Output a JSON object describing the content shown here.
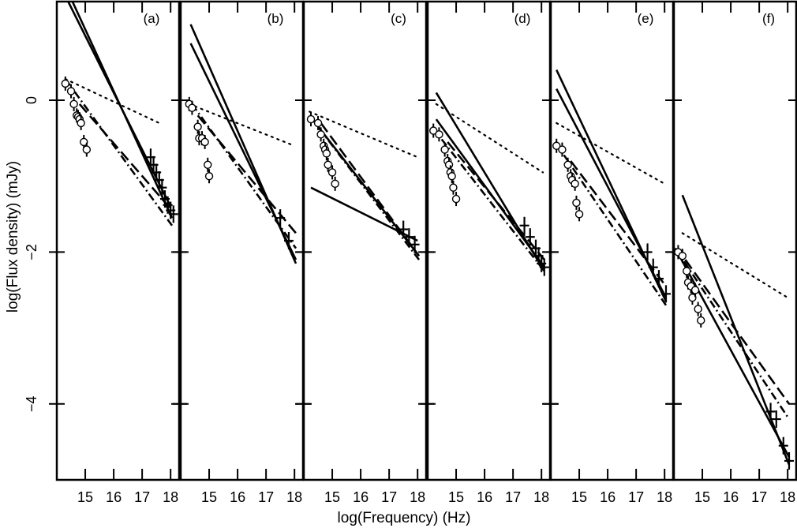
{
  "chart_data": {
    "type": "scatter",
    "xlabel": "log(Frequency) (Hz)",
    "ylabel": "log(Flux density) (mJy)",
    "xlim": [
      14.0,
      18.3
    ],
    "ylim": [
      -5.0,
      1.3
    ],
    "x_ticks": [
      15,
      16,
      17,
      18
    ],
    "y_ticks": [
      0,
      -2,
      -4
    ],
    "y_tick_labels": [
      "0",
      "−2",
      "−4"
    ],
    "line_styles": {
      "model_solid": "solid",
      "model_dashed": "dashed",
      "model_dotdash": "dot-dash",
      "model_dotted": "dotted"
    },
    "panels": [
      {
        "label": "(a)",
        "optical": [
          [
            14.3,
            0.22
          ],
          [
            14.5,
            0.12
          ],
          [
            14.6,
            -0.05
          ],
          [
            14.7,
            -0.2
          ],
          [
            14.75,
            -0.22
          ],
          [
            14.8,
            -0.25
          ],
          [
            14.85,
            -0.3
          ],
          [
            14.95,
            -0.55
          ],
          [
            15.05,
            -0.65
          ]
        ],
        "xray": [
          [
            17.3,
            -0.75
          ],
          [
            17.4,
            -0.85
          ],
          [
            17.5,
            -0.95
          ],
          [
            17.6,
            -1.05
          ],
          [
            17.7,
            -1.15
          ],
          [
            17.8,
            -1.3
          ],
          [
            17.9,
            -1.38
          ],
          [
            18.0,
            -1.45
          ],
          [
            18.1,
            -1.5
          ]
        ],
        "lines": [
          {
            "style": "solid",
            "points": [
              [
                14.4,
                1.3
              ],
              [
                18.0,
                -1.4
              ]
            ]
          },
          {
            "style": "solid",
            "points": [
              [
                14.55,
                1.3
              ],
              [
                18.05,
                -1.55
              ]
            ]
          },
          {
            "style": "dashed",
            "points": [
              [
                14.8,
                -0.05
              ],
              [
                18.05,
                -1.45
              ]
            ]
          },
          {
            "style": "dotdash",
            "points": [
              [
                14.3,
                0.28
              ],
              [
                18.05,
                -1.65
              ]
            ]
          },
          {
            "style": "dotted",
            "points": [
              [
                14.3,
                0.28
              ],
              [
                17.6,
                -0.3
              ]
            ]
          }
        ]
      },
      {
        "label": "(b)",
        "optical": [
          [
            14.3,
            -0.05
          ],
          [
            14.4,
            -0.1
          ],
          [
            14.6,
            -0.35
          ],
          [
            14.65,
            -0.5
          ],
          [
            14.75,
            -0.5
          ],
          [
            14.85,
            -0.55
          ],
          [
            14.95,
            -0.85
          ],
          [
            15.0,
            -1.0
          ]
        ],
        "xray": [
          [
            17.5,
            -1.55
          ],
          [
            17.8,
            -1.85
          ]
        ],
        "lines": [
          {
            "style": "solid",
            "points": [
              [
                14.35,
                1.0
              ],
              [
                18.05,
                -2.15
              ]
            ]
          },
          {
            "style": "solid",
            "points": [
              [
                14.35,
                0.75
              ],
              [
                18.05,
                -2.1
              ]
            ]
          },
          {
            "style": "dashed",
            "points": [
              [
                14.6,
                -0.2
              ],
              [
                18.05,
                -1.75
              ]
            ]
          },
          {
            "style": "dotdash",
            "points": [
              [
                14.4,
                -0.05
              ],
              [
                18.05,
                -1.95
              ]
            ]
          },
          {
            "style": "dotted",
            "points": [
              [
                14.3,
                -0.05
              ],
              [
                18.0,
                -0.6
              ]
            ]
          }
        ]
      },
      {
        "label": "(c)",
        "optical": [
          [
            14.25,
            -0.25
          ],
          [
            14.5,
            -0.3
          ],
          [
            14.6,
            -0.45
          ],
          [
            14.7,
            -0.6
          ],
          [
            14.75,
            -0.65
          ],
          [
            14.8,
            -0.7
          ],
          [
            14.85,
            -0.85
          ],
          [
            15.0,
            -0.95
          ],
          [
            15.1,
            -1.1
          ]
        ],
        "xray": [
          [
            17.5,
            -1.7
          ],
          [
            17.7,
            -1.8
          ],
          [
            17.9,
            -1.9
          ]
        ],
        "lines": [
          {
            "style": "solid",
            "points": [
              [
                14.2,
                -0.2
              ],
              [
                18.05,
                -2.05
              ]
            ]
          },
          {
            "style": "solid",
            "points": [
              [
                14.25,
                -1.15
              ],
              [
                18.0,
                -1.85
              ]
            ]
          },
          {
            "style": "dashed",
            "points": [
              [
                14.6,
                -0.3
              ],
              [
                18.05,
                -2.05
              ]
            ]
          },
          {
            "style": "dotdash",
            "points": [
              [
                14.2,
                -0.2
              ],
              [
                18.05,
                -2.1
              ]
            ]
          },
          {
            "style": "dotted",
            "points": [
              [
                14.2,
                -0.15
              ],
              [
                18.0,
                -0.75
              ]
            ]
          }
        ]
      },
      {
        "label": "(d)",
        "optical": [
          [
            14.2,
            -0.4
          ],
          [
            14.4,
            -0.45
          ],
          [
            14.6,
            -0.65
          ],
          [
            14.7,
            -0.8
          ],
          [
            14.75,
            -0.85
          ],
          [
            14.8,
            -0.95
          ],
          [
            14.85,
            -1.0
          ],
          [
            14.9,
            -1.15
          ],
          [
            15.0,
            -1.3
          ]
        ],
        "xray": [
          [
            17.4,
            -1.65
          ],
          [
            17.6,
            -1.8
          ],
          [
            17.8,
            -1.95
          ],
          [
            17.9,
            -2.05
          ],
          [
            18.0,
            -2.15
          ],
          [
            18.1,
            -2.2
          ]
        ],
        "lines": [
          {
            "style": "solid",
            "points": [
              [
                14.3,
                0.1
              ],
              [
                18.1,
                -2.25
              ]
            ]
          },
          {
            "style": "solid",
            "points": [
              [
                14.3,
                -0.25
              ],
              [
                18.1,
                -2.2
              ]
            ]
          },
          {
            "style": "dashed",
            "points": [
              [
                14.7,
                -0.55
              ],
              [
                18.1,
                -2.1
              ]
            ]
          },
          {
            "style": "dotdash",
            "points": [
              [
                14.15,
                -0.35
              ],
              [
                18.1,
                -2.25
              ]
            ]
          },
          {
            "style": "dotted",
            "points": [
              [
                14.3,
                -0.05
              ],
              [
                18.05,
                -0.95
              ]
            ]
          }
        ]
      },
      {
        "label": "(e)",
        "optical": [
          [
            14.2,
            -0.6
          ],
          [
            14.4,
            -0.65
          ],
          [
            14.6,
            -0.85
          ],
          [
            14.7,
            -1.0
          ],
          [
            14.75,
            -1.05
          ],
          [
            14.85,
            -1.1
          ],
          [
            14.9,
            -1.35
          ],
          [
            15.0,
            -1.5
          ]
        ],
        "xray": [
          [
            17.4,
            -2.0
          ],
          [
            17.6,
            -2.2
          ],
          [
            17.8,
            -2.35
          ],
          [
            18.05,
            -2.55
          ]
        ],
        "lines": [
          {
            "style": "solid",
            "points": [
              [
                14.2,
                0.4
              ],
              [
                18.05,
                -2.65
              ]
            ]
          },
          {
            "style": "solid",
            "points": [
              [
                14.2,
                0.15
              ],
              [
                18.05,
                -2.6
              ]
            ]
          },
          {
            "style": "dashed",
            "points": [
              [
                14.7,
                -0.8
              ],
              [
                18.05,
                -2.45
              ]
            ]
          },
          {
            "style": "dotdash",
            "points": [
              [
                14.15,
                -0.55
              ],
              [
                18.05,
                -2.7
              ]
            ]
          },
          {
            "style": "dotted",
            "points": [
              [
                14.2,
                -0.3
              ],
              [
                18.0,
                -1.1
              ]
            ]
          }
        ]
      },
      {
        "label": "(f)",
        "optical": [
          [
            14.15,
            -2.0
          ],
          [
            14.3,
            -2.05
          ],
          [
            14.45,
            -2.25
          ],
          [
            14.5,
            -2.4
          ],
          [
            14.6,
            -2.45
          ],
          [
            14.65,
            -2.6
          ],
          [
            14.75,
            -2.5
          ],
          [
            14.85,
            -2.75
          ],
          [
            14.95,
            -2.9
          ]
        ],
        "xray": [
          [
            17.4,
            -4.1
          ],
          [
            17.6,
            -4.2
          ],
          [
            17.85,
            -4.55
          ],
          [
            18.05,
            -4.75
          ]
        ],
        "lines": [
          {
            "style": "solid",
            "points": [
              [
                14.3,
                -1.25
              ],
              [
                18.05,
                -4.8
              ]
            ]
          },
          {
            "style": "solid",
            "points": [
              [
                14.05,
                -1.95
              ],
              [
                18.05,
                -4.7
              ]
            ]
          },
          {
            "style": "dashed",
            "points": [
              [
                14.4,
                -2.1
              ],
              [
                18.05,
                -4.0
              ]
            ]
          },
          {
            "style": "dotdash",
            "points": [
              [
                14.05,
                -1.95
              ],
              [
                18.05,
                -4.2
              ]
            ]
          },
          {
            "style": "dotted",
            "points": [
              [
                14.3,
                -1.75
              ],
              [
                18.0,
                -2.6
              ]
            ]
          }
        ]
      }
    ]
  }
}
